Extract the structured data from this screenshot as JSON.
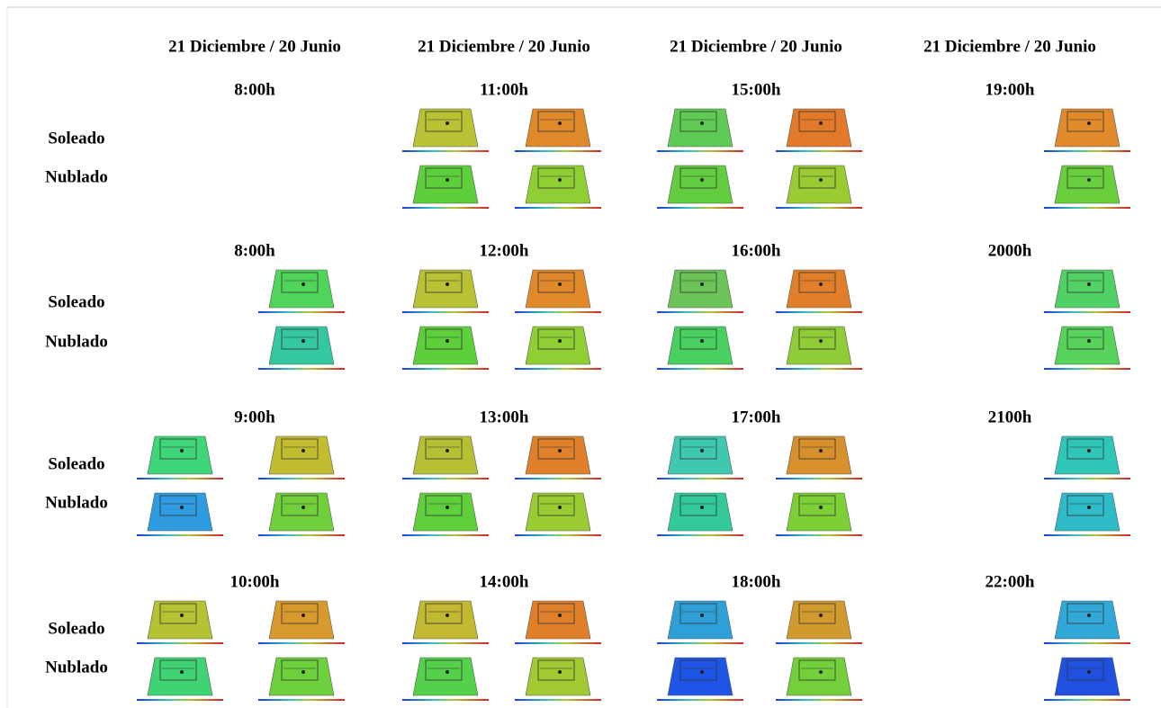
{
  "headers": [
    "21 Diciembre / 20 Junio",
    "21 Diciembre / 20 Junio",
    "21 Diciembre / 20 Junio",
    "21 Diciembre / 20 Junio"
  ],
  "blocks": [
    {
      "sunny": "Soleado",
      "cloudy": "Nublado",
      "times": [
        "8:00h",
        "11:00h",
        "15:00h",
        "19:00h"
      ]
    },
    {
      "sunny": "Soleado",
      "cloudy": "Nublado",
      "times": [
        "8:00h",
        "12:00h",
        "16:00h",
        "2000h"
      ]
    },
    {
      "sunny": "Soleado",
      "cloudy": "Nublado",
      "times": [
        "9:00h",
        "13:00h",
        "17:00h",
        "2100h"
      ]
    },
    {
      "sunny": "Soleado",
      "cloudy": "Nublado",
      "times": [
        "10:00h",
        "14:00h",
        "18:00h",
        "22:00h"
      ]
    }
  ]
}
